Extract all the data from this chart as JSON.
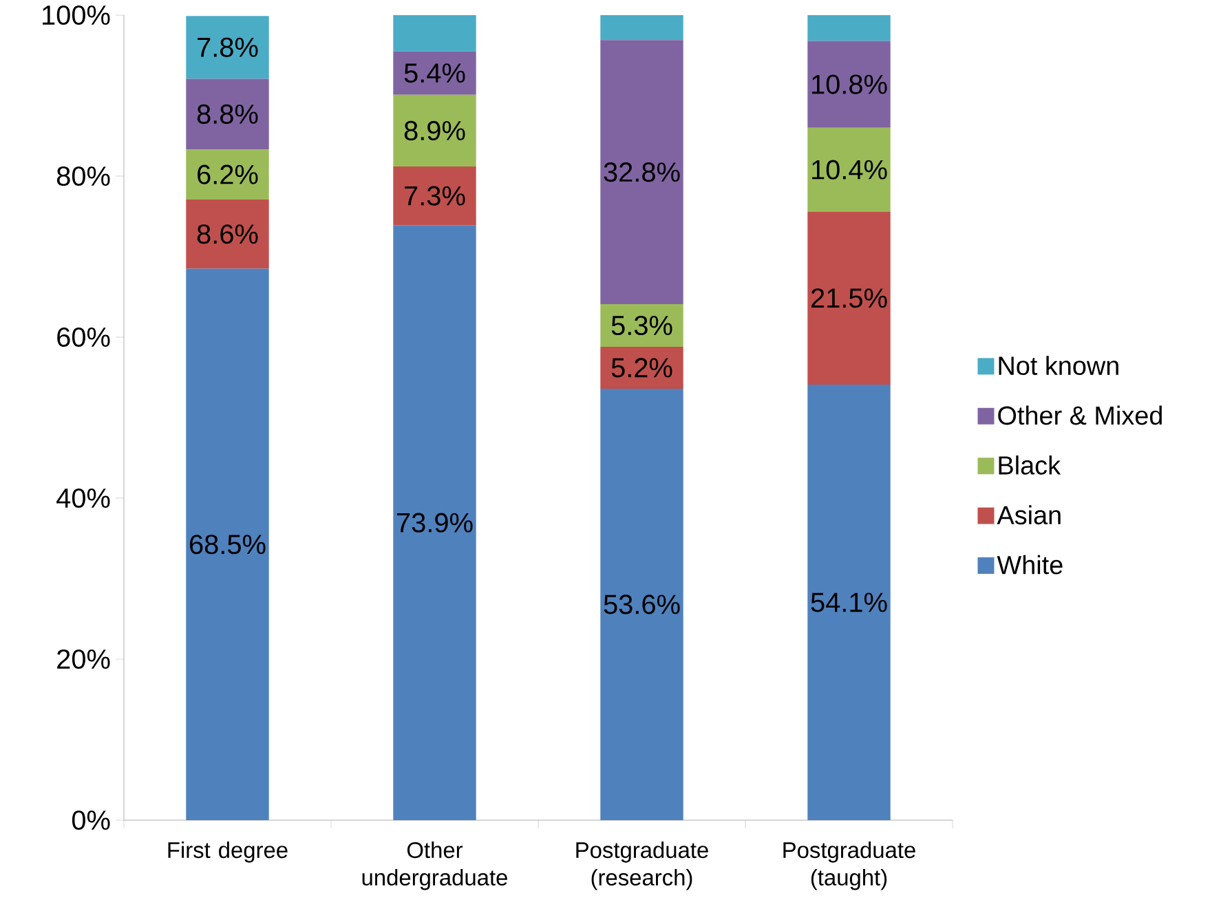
{
  "chart_data": {
    "type": "bar",
    "stacked": true,
    "categories": [
      "First degree",
      "Other undergraduate",
      "Postgraduate (research)",
      "Postgraduate (taught)"
    ],
    "series": [
      {
        "name": "White",
        "color": "#4f81bd",
        "values": [
          68.5,
          73.9,
          53.6,
          54.1
        ],
        "value_labels": [
          "68.5%",
          "73.9%",
          "53.6%",
          "54.1%"
        ]
      },
      {
        "name": "Asian",
        "color": "#c0504d",
        "values": [
          8.6,
          7.3,
          5.2,
          21.5
        ],
        "value_labels": [
          "8.6%",
          "7.3%",
          "5.2%",
          "21.5%"
        ]
      },
      {
        "name": "Black",
        "color": "#9bbb59",
        "values": [
          6.2,
          8.9,
          5.3,
          10.4
        ],
        "value_labels": [
          "6.2%",
          "8.9%",
          "5.3%",
          "10.4%"
        ]
      },
      {
        "name": "Other & Mixed",
        "color": "#8064a2",
        "values": [
          8.8,
          5.4,
          32.8,
          10.8
        ],
        "value_labels": [
          "8.8%",
          "5.4%",
          "32.8%",
          "10.8%"
        ]
      },
      {
        "name": "Not known",
        "color": "#4bacc6",
        "values": [
          7.8,
          4.5,
          3.1,
          3.2
        ],
        "value_labels": [
          "7.8%",
          null,
          null,
          null
        ]
      }
    ],
    "ylim": [
      0,
      100
    ],
    "yticks": [
      {
        "value": 0,
        "label": "0%"
      },
      {
        "value": 20,
        "label": "20%"
      },
      {
        "value": 40,
        "label": "40%"
      },
      {
        "value": 60,
        "label": "60%"
      },
      {
        "value": 80,
        "label": "80%"
      },
      {
        "value": 100,
        "label": "100%"
      }
    ],
    "legend": "right",
    "grid": false
  }
}
